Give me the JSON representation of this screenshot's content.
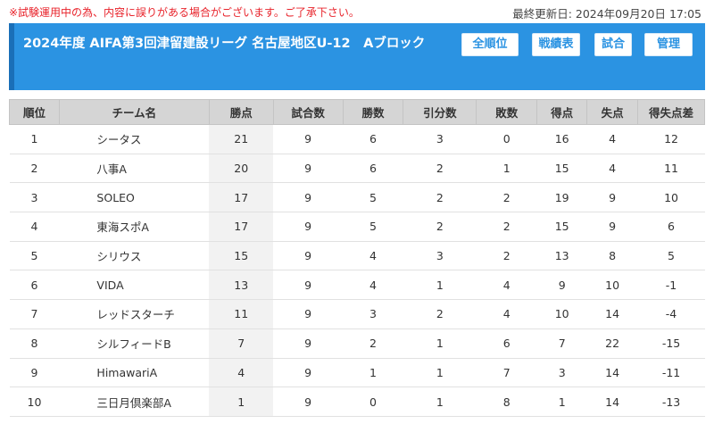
{
  "notice": "※試験運用中の為、内容に誤りがある場合がございます。ご了承下さい。",
  "last_updated": "最終更新日: 2024年09月20日 17:05",
  "header": {
    "title": "2024年度 AIFA第3回津留建設リーグ 名古屋地区U-12　Aブロック",
    "buttons": [
      "全順位",
      "戦績表",
      "試合",
      "管理"
    ]
  },
  "table": {
    "columns": [
      "順位",
      "チーム名",
      "勝点",
      "試合数",
      "勝数",
      "引分数",
      "敗数",
      "得点",
      "失点",
      "得失点差"
    ],
    "rows": [
      [
        "1",
        "シータス",
        "21",
        "9",
        "6",
        "3",
        "0",
        "16",
        "4",
        "12"
      ],
      [
        "2",
        "八事A",
        "20",
        "9",
        "6",
        "2",
        "1",
        "15",
        "4",
        "11"
      ],
      [
        "3",
        "SOLEO",
        "17",
        "9",
        "5",
        "2",
        "2",
        "19",
        "9",
        "10"
      ],
      [
        "4",
        "東海スポA",
        "17",
        "9",
        "5",
        "2",
        "2",
        "15",
        "9",
        "6"
      ],
      [
        "5",
        "シリウス",
        "15",
        "9",
        "4",
        "3",
        "2",
        "13",
        "8",
        "5"
      ],
      [
        "6",
        "VIDA",
        "13",
        "9",
        "4",
        "1",
        "4",
        "9",
        "10",
        "-1"
      ],
      [
        "7",
        "レッドスターチ",
        "11",
        "9",
        "3",
        "2",
        "4",
        "10",
        "14",
        "-4"
      ],
      [
        "8",
        "シルフィードB",
        "7",
        "9",
        "2",
        "1",
        "6",
        "7",
        "22",
        "-15"
      ],
      [
        "9",
        "HimawariA",
        "4",
        "9",
        "1",
        "1",
        "7",
        "3",
        "14",
        "-11"
      ],
      [
        "10",
        "三日月倶楽部A",
        "1",
        "9",
        "0",
        "1",
        "8",
        "1",
        "14",
        "-13"
      ]
    ]
  },
  "colors": {
    "header_bg": "#2b93e2",
    "header_border": "#1a6fb8",
    "notice": "#e8232b",
    "table_head": "#d5d5d5"
  }
}
